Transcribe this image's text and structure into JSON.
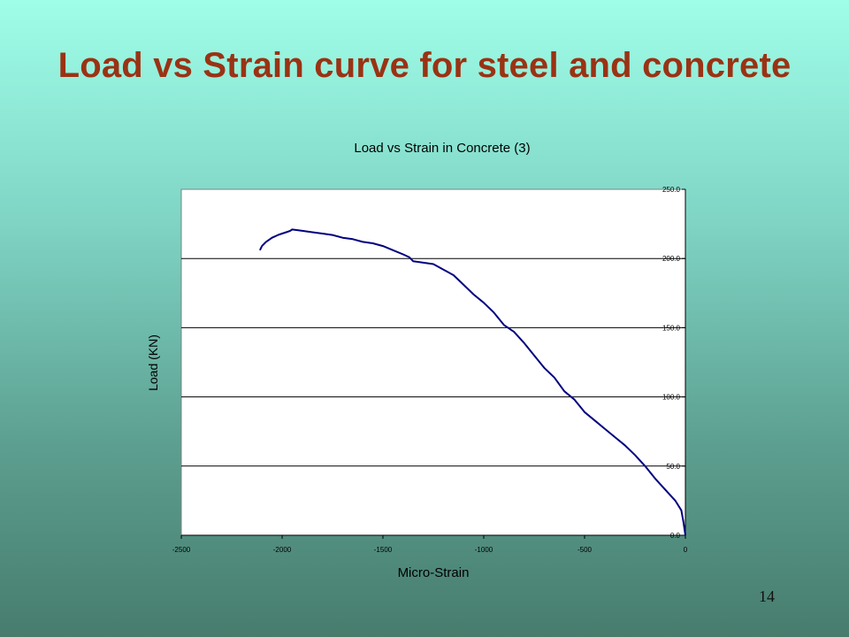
{
  "slide": {
    "title": "Load vs Strain curve for steel and concrete",
    "page_number": "14"
  },
  "colors": {
    "title": "#9b3214",
    "line": "#000080",
    "gridline": "#000000",
    "plot_bg": "#ffffff"
  },
  "chart_data": {
    "type": "line",
    "title": "Load vs Strain in Concrete (3)",
    "xlabel": "Micro-Strain",
    "ylabel": "Load (KN)",
    "xlim": [
      -2500,
      0
    ],
    "ylim": [
      0,
      250
    ],
    "x_ticks": [
      -2500,
      -2000,
      -1500,
      -1000,
      -500,
      0
    ],
    "x_tick_labels": [
      "-2500",
      "-2000",
      "-1500",
      "-1000",
      "-500",
      "0"
    ],
    "y_ticks": [
      0,
      50,
      100,
      150,
      200,
      250
    ],
    "y_tick_labels": [
      "0.0",
      "50.0",
      "100.0",
      "150.0",
      "200.0",
      "250.0"
    ],
    "y_axis_position": "right",
    "grid": "horizontal",
    "legend": "none",
    "series": [
      {
        "x": [
          -2110,
          -2100,
          -2080,
          -2050,
          -2020,
          -2000,
          -1980,
          -1960,
          -1950,
          -1900,
          -1850,
          -1800,
          -1750,
          -1700,
          -1650,
          -1600,
          -1550,
          -1500,
          -1450,
          -1400,
          -1370,
          -1350,
          -1300,
          -1250,
          -1200,
          -1150,
          -1100,
          -1050,
          -1000,
          -950,
          -900,
          -850,
          -800,
          -750,
          -700,
          -650,
          -600,
          -550,
          -500,
          -450,
          -400,
          -350,
          -300,
          -250,
          -200,
          -150,
          -100,
          -50,
          -20,
          -10,
          0
        ],
        "y": [
          206,
          209,
          212,
          215,
          217,
          218,
          219,
          220,
          221,
          220,
          219,
          218,
          217,
          215,
          214,
          212,
          211,
          209,
          206,
          203,
          201,
          198,
          197,
          196,
          192,
          188,
          181,
          174,
          168,
          161,
          152,
          147,
          139,
          130,
          121,
          114,
          104,
          98,
          89,
          83,
          77,
          71,
          65,
          58,
          50,
          41,
          33,
          25,
          18,
          10,
          0
        ]
      }
    ]
  }
}
